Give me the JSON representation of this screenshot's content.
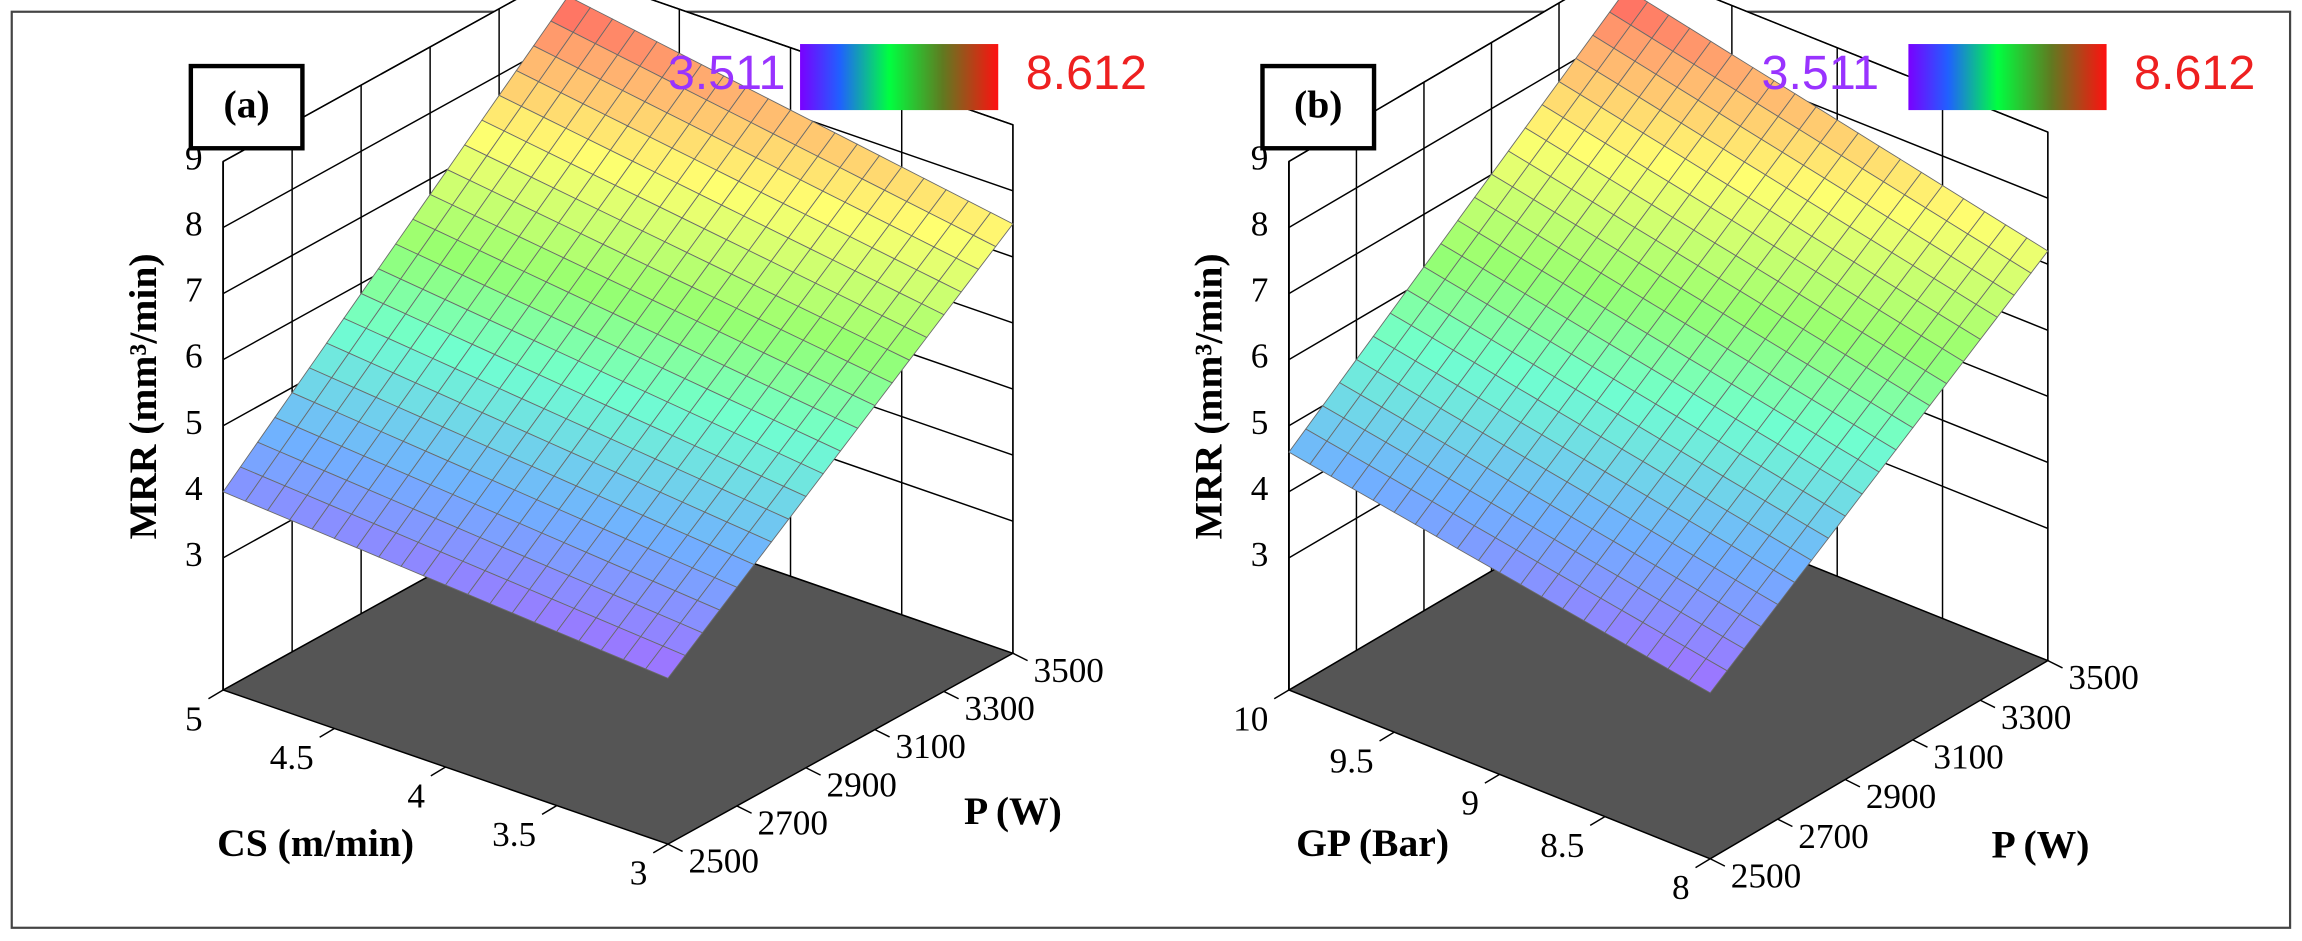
{
  "chart_data": [
    {
      "type": "surface3d",
      "panel_label": "(a)",
      "colorbar": {
        "min": 3.511,
        "max": 8.612
      },
      "xlabel": "CS (m/min)",
      "ylabel": "P (W)",
      "zlabel": "MRR (mm³/min)",
      "xlim": [
        3,
        5
      ],
      "xticks": [
        3,
        3.5,
        4,
        4.5,
        5
      ],
      "ylim": [
        2500,
        3500
      ],
      "yticks": [
        2500,
        2700,
        2900,
        3100,
        3300,
        3500
      ],
      "zlim": [
        1,
        9
      ],
      "zticks": [
        3,
        4,
        5,
        6,
        7,
        8,
        9
      ],
      "surface_corners": [
        [
          3.511,
          7.5
        ],
        [
          4.0,
          8.612
        ]
      ]
    },
    {
      "type": "surface3d",
      "panel_label": "(b)",
      "colorbar": {
        "min": 3.511,
        "max": 8.612
      },
      "xlabel": "GP  (Bar)",
      "ylabel": "P (W)",
      "zlabel": "MRR (mm³/min)",
      "xlim": [
        8,
        10
      ],
      "xticks": [
        8,
        8.5,
        9,
        9.5,
        10
      ],
      "ylim": [
        2500,
        3500
      ],
      "yticks": [
        2500,
        2700,
        2900,
        3100,
        3300,
        3500
      ],
      "zlim": [
        1,
        9
      ],
      "zticks": [
        3,
        4,
        5,
        6,
        7,
        8,
        9
      ],
      "surface_corners": [
        [
          3.511,
          7.2
        ],
        [
          4.6,
          8.612
        ]
      ]
    }
  ]
}
